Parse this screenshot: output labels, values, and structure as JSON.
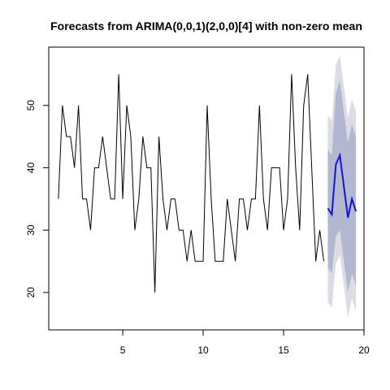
{
  "chart_data": {
    "type": "line",
    "title": "Forecasts from ARIMA(0,0,1)(2,0,0)[4] with non-zero mean",
    "xlim": [
      0.4,
      20.0
    ],
    "xticks": [
      5,
      10,
      15,
      20
    ],
    "ylim": [
      14.0,
      59.35
    ],
    "yticks": [
      20,
      30,
      40,
      50
    ],
    "intervals": [
      {
        "color": "#dcdce4",
        "x": [
          17.75,
          18,
          18.25,
          18.5,
          18.75,
          19,
          19.25,
          19.5
        ],
        "lower": [
          18.5,
          17.5,
          24.5,
          26,
          21,
          16,
          19,
          17
        ],
        "upper": [
          48.5,
          47.5,
          56.5,
          58,
          53,
          48,
          51,
          49
        ]
      },
      {
        "color": "#b3b7cf",
        "x": [
          17.75,
          18,
          18.25,
          18.5,
          18.75,
          19,
          19.25,
          19.5
        ],
        "lower": [
          24,
          23,
          29,
          30,
          25,
          20,
          23,
          21
        ],
        "upper": [
          43,
          42,
          52,
          54,
          49,
          44,
          47,
          45
        ]
      }
    ],
    "series": [
      {
        "color": "#000000",
        "x": [
          1,
          1.25,
          1.5,
          1.75,
          2,
          2.25,
          2.5,
          2.75,
          3,
          3.25,
          3.5,
          3.75,
          4,
          4.25,
          4.5,
          4.75,
          5,
          5.25,
          5.5,
          5.75,
          6,
          6.25,
          6.5,
          6.75,
          7,
          7.25,
          7.5,
          7.75,
          8,
          8.25,
          8.5,
          8.75,
          9,
          9.25,
          9.5,
          9.75,
          10,
          10.25,
          10.5,
          10.75,
          11,
          11.25,
          11.5,
          11.75,
          12,
          12.25,
          12.5,
          12.75,
          13,
          13.25,
          13.5,
          13.75,
          14,
          14.25,
          14.5,
          14.75,
          15,
          15.25,
          15.5,
          15.75,
          16,
          16.25,
          16.5,
          16.75,
          17,
          17.25,
          17.5
        ],
        "values": [
          35,
          50,
          45,
          45,
          40,
          50,
          35,
          35,
          30,
          40,
          40,
          45,
          40,
          35,
          35,
          55,
          35,
          50,
          45,
          30,
          35,
          45,
          40,
          40,
          20,
          45,
          35,
          30,
          35,
          35,
          30,
          30,
          25,
          30,
          25,
          25,
          25,
          50,
          35,
          25,
          25,
          25,
          35,
          30,
          25,
          35,
          35,
          30,
          35,
          35,
          50,
          35,
          30,
          40,
          40,
          40,
          30,
          35,
          55,
          40,
          30,
          50,
          55,
          40,
          25,
          30,
          25
        ]
      },
      {
        "color": "#1414d2",
        "x": [
          17.75,
          18,
          18.25,
          18.5,
          18.75,
          19,
          19.25,
          19.5
        ],
        "values": [
          33.5,
          32.5,
          40.5,
          42,
          37,
          32,
          35,
          33
        ]
      }
    ]
  }
}
